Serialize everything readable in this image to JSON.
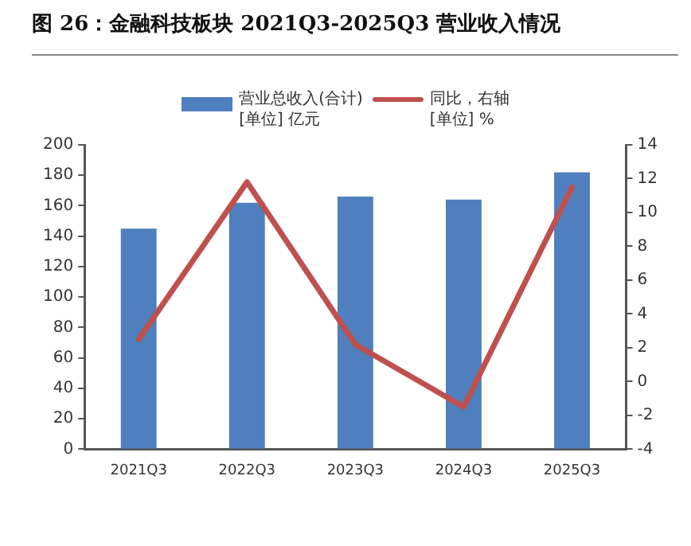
{
  "chart_data": {
    "type": "bar",
    "title": "图 26：金融科技板块 2021Q3-2025Q3 营业收入情况",
    "categories": [
      "2021Q3",
      "2022Q3",
      "2023Q3",
      "2024Q3",
      "2025Q3"
    ],
    "series": [
      {
        "name": "营业总收入(合计)",
        "color": "#4f7fbe",
        "values": [
          145,
          162,
          166,
          164,
          182
        ]
      },
      {
        "name": "同比，右轴",
        "type": "line",
        "axis": "y2",
        "color": "#c0504d",
        "values": [
          2.5,
          11.8,
          2.2,
          -1.5,
          11.5
        ]
      }
    ],
    "ylabel": "[单位] 亿元",
    "y2label": "[单位] %",
    "ylim": [
      0,
      200
    ],
    "yticks": [
      0,
      20,
      40,
      60,
      80,
      100,
      120,
      140,
      160,
      180,
      200
    ],
    "y2lim": [
      -4,
      14
    ],
    "y2ticks": [
      -4,
      -2,
      0,
      2,
      4,
      6,
      8,
      10,
      12,
      14
    ],
    "grid": false,
    "legend": "top",
    "marker": "none"
  }
}
